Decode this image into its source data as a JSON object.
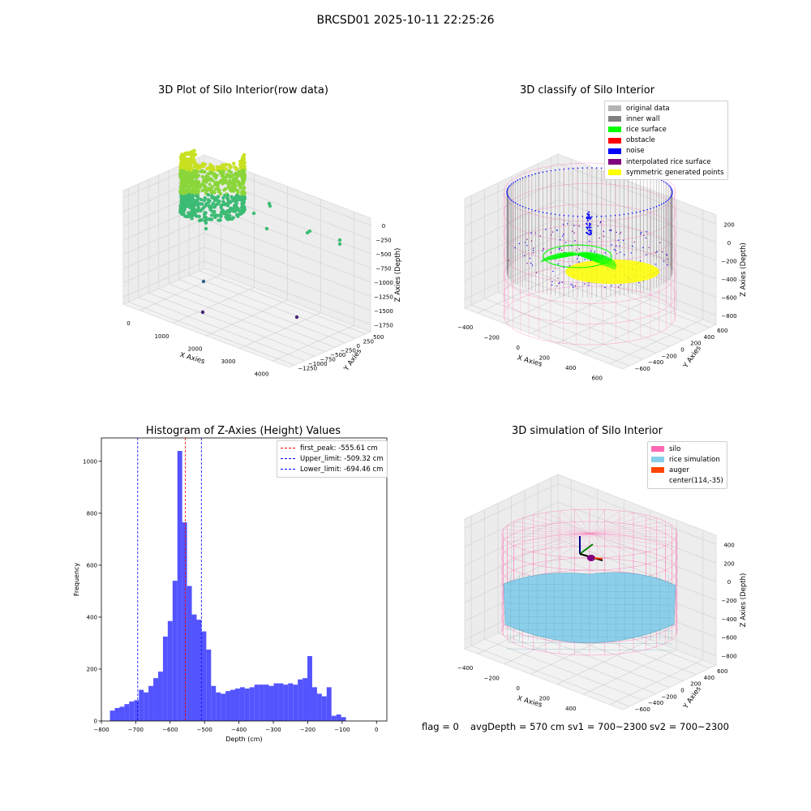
{
  "suptitle": "BRCSD01 2025-10-11 22:25:26",
  "status": {
    "flag": "flag = 0",
    "avg_depth": "avgDepth = 570 cm",
    "sv1": "sv1 = 700~2300",
    "sv2": "sv2 = 700~2300"
  },
  "colors": {
    "original_data": "#b3b3b3",
    "inner_wall": "#808080",
    "rice_surface": "#00ff00",
    "obstacle": "#ff0000",
    "noise": "#0000ff",
    "interpolated": "#800080",
    "symmetric": "#ffff00",
    "silo": "#ff69b4",
    "rice_sim": "#87ceeb",
    "auger": "#ff4500",
    "hist_bar": "#4b4bff",
    "first_peak_line": "#ff0000",
    "limit_line": "#0000ff"
  },
  "panels": {
    "raw": {
      "title": "3D Plot of Silo Interior(row data)",
      "xlabel": "X Axies",
      "ylabel": "Y Axies",
      "zlabel": "Z Axies (Depth)",
      "xticks": [
        "0",
        "1000",
        "2000",
        "3000",
        "4000"
      ],
      "yticks": [
        "500",
        "250",
        "0",
        "−250",
        "−500",
        "−750",
        "−1000",
        "−1250"
      ],
      "zticks": [
        "0",
        "−250",
        "−500",
        "−750",
        "−1000",
        "−1250",
        "−1500",
        "−1750"
      ]
    },
    "classify": {
      "title": "3D classify of Silo Interior",
      "xlabel": "X Axies",
      "ylabel": "Y Axies",
      "zlabel": "Z Axies (Depth)",
      "xticks": [
        "−400",
        "−200",
        "0",
        "200",
        "400",
        "600"
      ],
      "yticks": [
        "600",
        "400",
        "200",
        "0",
        "−200",
        "−400",
        "−600"
      ],
      "zticks": [
        "200",
        "0",
        "−200",
        "−400",
        "−600",
        "−800"
      ],
      "legend": [
        {
          "label": "original data",
          "color_key": "original_data"
        },
        {
          "label": "inner wall",
          "color_key": "inner_wall"
        },
        {
          "label": "rice surface",
          "color_key": "rice_surface"
        },
        {
          "label": "obstacle",
          "color_key": "obstacle"
        },
        {
          "label": "noise",
          "color_key": "noise"
        },
        {
          "label": "interpolated rice surface",
          "color_key": "interpolated"
        },
        {
          "label": "symmetric generated points",
          "color_key": "symmetric"
        }
      ]
    },
    "simulation": {
      "title": "3D simulation of Silo Interior",
      "xlabel": "X Axies",
      "ylabel": "Y Axies",
      "zlabel": "Z Axies (Depth)",
      "xticks": [
        "−400",
        "−200",
        "0",
        "200",
        "400",
        "600"
      ],
      "yticks": [
        "600",
        "400",
        "200",
        "0",
        "−200",
        "−400",
        "−600"
      ],
      "zticks": [
        "400",
        "200",
        "0",
        "−200",
        "−400",
        "−600",
        "−800"
      ],
      "legend": [
        {
          "label": "silo",
          "color_key": "silo"
        },
        {
          "label": "rice simulation",
          "color_key": "rice_sim"
        },
        {
          "label": "auger",
          "color_key": "auger"
        },
        {
          "label": "center(114,-35)",
          "color_key": ""
        }
      ]
    }
  },
  "chart_data": {
    "type": "bar",
    "title": "Histogram of Z-Axies (Height) Values",
    "xlabel": "Depth (cm)",
    "ylabel": "Frequency",
    "xlim": [
      -800,
      30
    ],
    "ylim": [
      0,
      1090
    ],
    "xticks": [
      -800,
      -700,
      -600,
      -500,
      -400,
      -300,
      -200,
      -100,
      0
    ],
    "xtick_labels": [
      "−800",
      "−700",
      "−600",
      "−500",
      "−400",
      "−300",
      "−200",
      "−100",
      "0"
    ],
    "yticks": [
      0,
      200,
      400,
      600,
      800,
      1000
    ],
    "bin_start": -775,
    "bin_width": 14,
    "values": [
      40,
      50,
      55,
      65,
      75,
      80,
      120,
      110,
      135,
      165,
      190,
      325,
      385,
      540,
      1040,
      765,
      520,
      410,
      390,
      345,
      275,
      135,
      110,
      105,
      115,
      120,
      125,
      130,
      125,
      130,
      140,
      140,
      140,
      135,
      145,
      145,
      140,
      145,
      140,
      160,
      165,
      250,
      130,
      105,
      95,
      130,
      20,
      25,
      15
    ],
    "vlines": [
      {
        "label": "first_peak: -555.61 cm",
        "x": -555.61,
        "color_key": "first_peak_line"
      },
      {
        "label": "Upper_limit: -509.32 cm",
        "x": -509.32,
        "color_key": "limit_line"
      },
      {
        "label": "Lower_limit: -694.46 cm",
        "x": -694.46,
        "color_key": "limit_line"
      }
    ],
    "legend_position": "upper right"
  }
}
